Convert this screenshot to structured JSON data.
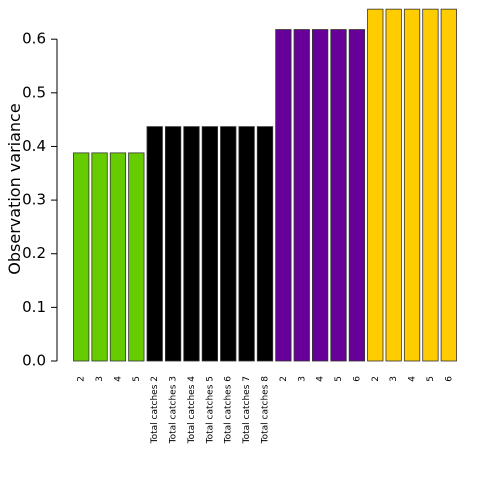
{
  "chart_data": {
    "type": "bar",
    "ylabel": "Observation variance",
    "xlabel": "",
    "ylim": [
      0,
      0.66
    ],
    "yticks": [
      "0.0",
      "0.1",
      "0.2",
      "0.3",
      "0.4",
      "0.5",
      "0.6"
    ],
    "grid": false,
    "legend": "none",
    "colors": {
      "green": "#66CC00",
      "black": "#000000",
      "purple": "#660099",
      "yellow": "#FFCC00"
    },
    "categories": [
      "2",
      "3",
      "4",
      "5",
      "Total catches 2",
      "Total catches 3",
      "Total catches 4",
      "Total catches 5",
      "Total catches 6",
      "Total catches 7",
      "Total catches 8",
      "2",
      "3",
      "4",
      "5",
      "6",
      "2",
      "3",
      "4",
      "5",
      "6"
    ],
    "values": [
      0.388,
      0.388,
      0.388,
      0.388,
      0.437,
      0.437,
      0.437,
      0.437,
      0.437,
      0.437,
      0.437,
      0.618,
      0.618,
      0.618,
      0.618,
      0.618,
      0.656,
      0.656,
      0.656,
      0.656,
      0.656
    ],
    "bar_colors": [
      "#66CC00",
      "#66CC00",
      "#66CC00",
      "#66CC00",
      "#000000",
      "#000000",
      "#000000",
      "#000000",
      "#000000",
      "#000000",
      "#000000",
      "#660099",
      "#660099",
      "#660099",
      "#660099",
      "#660099",
      "#FFCC00",
      "#FFCC00",
      "#FFCC00",
      "#FFCC00",
      "#FFCC00"
    ]
  }
}
